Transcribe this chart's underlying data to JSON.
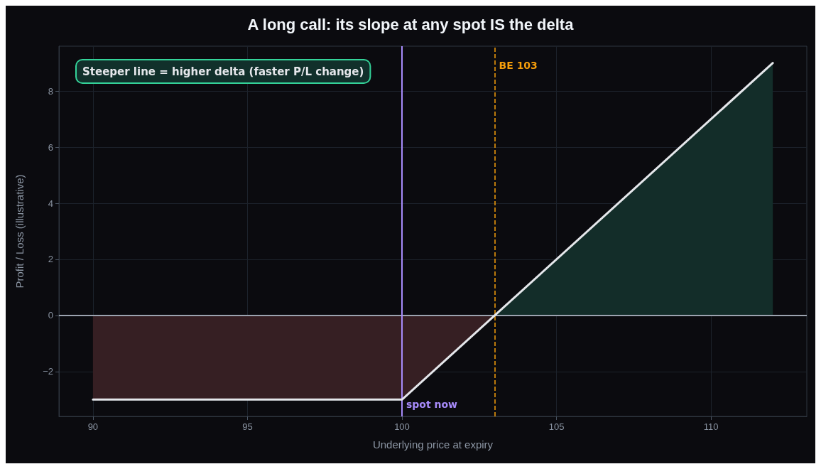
{
  "chart_data": {
    "type": "line",
    "title": "A long call: its slope at any spot IS the delta",
    "xlabel": "Underlying price at expiry",
    "ylabel": "Profit / Loss (illustrative)",
    "series": [
      {
        "type": "area",
        "color": "#361f23",
        "x": [
          90,
          100,
          103
        ],
        "values": [
          -3,
          -3,
          0
        ]
      },
      {
        "type": "area",
        "color": "#132d29",
        "x": [
          103,
          112
        ],
        "values": [
          0,
          9
        ]
      },
      {
        "color": "#e5e7eb",
        "x": [
          90,
          100,
          103,
          112
        ],
        "values": [
          -3,
          -3,
          0,
          9
        ]
      }
    ],
    "xlim": [
      88.9,
      113.1
    ],
    "xticks": [
      90,
      95,
      100,
      105,
      110
    ],
    "ylim": [
      -3.6,
      9.6
    ],
    "yticks": [
      {
        "value": -2,
        "label": "−2"
      },
      0,
      2,
      4,
      6,
      8
    ],
    "ref_lines": [
      {
        "axis": "y",
        "value": 0,
        "color": "#9ca3af",
        "line_style": "solid"
      },
      {
        "axis": "x",
        "value": 100,
        "label": "spot now",
        "color": "#a78bfa",
        "line_style": "solid"
      },
      {
        "axis": "x",
        "value": 103,
        "label": "BE 103",
        "color": "#f59e0b",
        "line_style": "dashed"
      }
    ],
    "annotations": [
      "Steeper line = higher delta (faster P/L change)"
    ],
    "grid": true,
    "marker": "none",
    "line_style": "solid"
  }
}
